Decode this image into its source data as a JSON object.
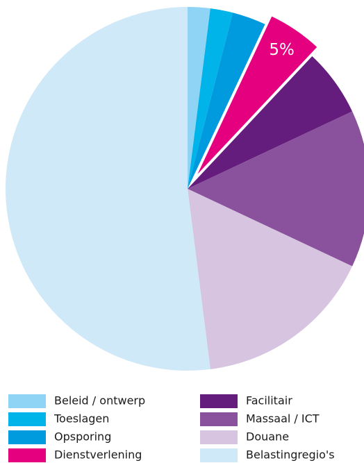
{
  "chart_data": {
    "type": "pie",
    "categories": [
      "Beleid / ontwerp",
      "Toeslagen",
      "Opsporing",
      "Dienstverlening",
      "Facilitair",
      "Massaal / ICT",
      "Douane",
      "Belastingregio's"
    ],
    "values": [
      2,
      2,
      3,
      5,
      6,
      14,
      16,
      52
    ],
    "value_labels": [
      null,
      null,
      null,
      "5%",
      null,
      null,
      null,
      null
    ],
    "colors": [
      "#8fd3f5",
      "#00b4e9",
      "#009ade",
      "#e4007e",
      "#651d7d",
      "#8a529c",
      "#d6c4e1",
      "#d0e9f9"
    ]
  }
}
